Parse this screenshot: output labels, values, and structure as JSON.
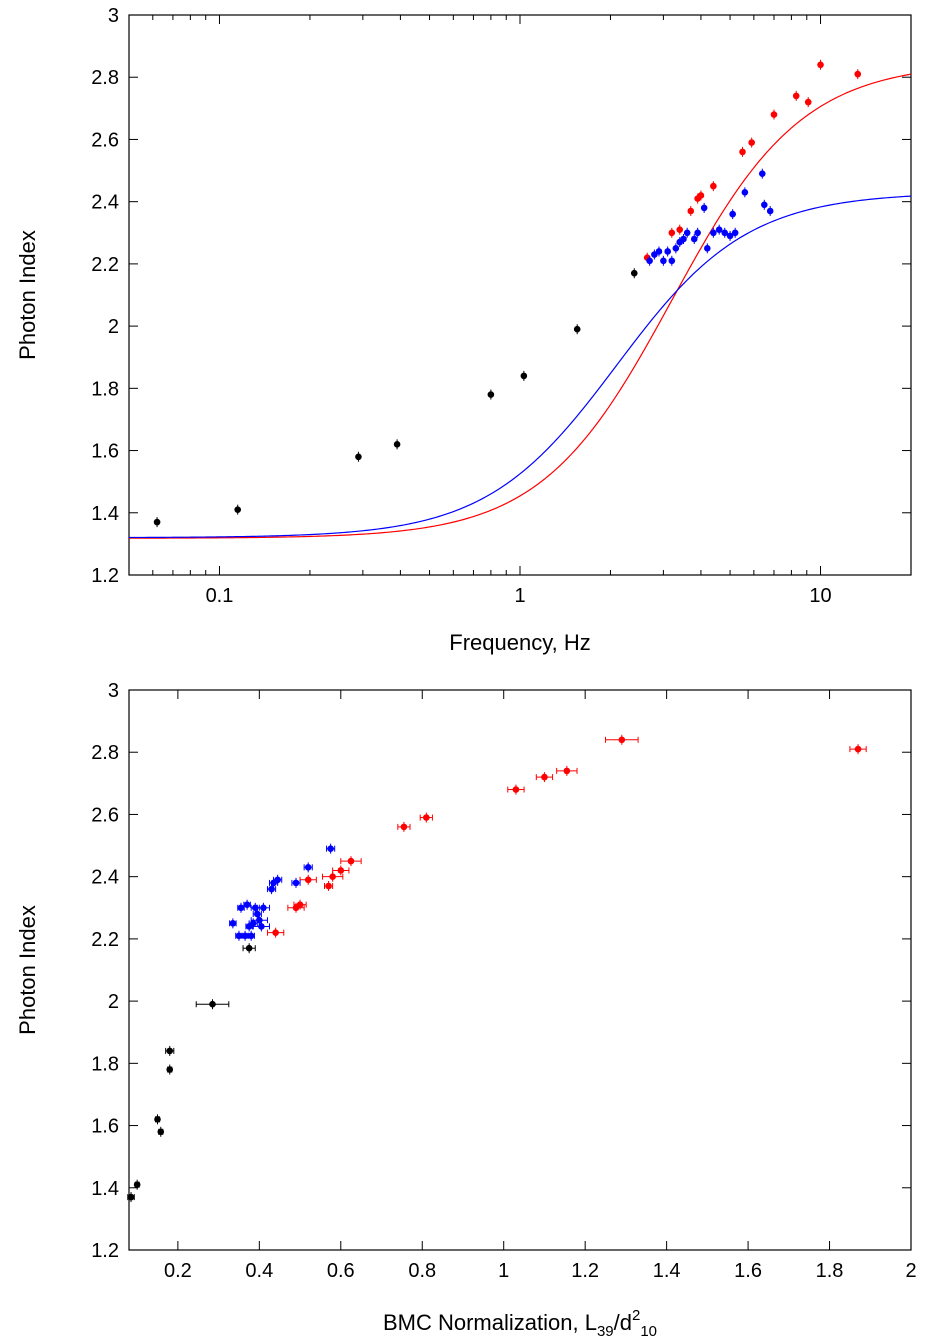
{
  "colors": {
    "black_series": "#000000",
    "red_series": "#ff0000",
    "blue_series": "#0000ff"
  },
  "chart_data": [
    {
      "type": "scatter",
      "xlabel": "Frequency, Hz",
      "ylabel": "Photon Index",
      "xscale": "log",
      "xlim": [
        0.05,
        20
      ],
      "ylim": [
        1.2,
        3
      ],
      "x_ticks": [
        0.1,
        1,
        10
      ],
      "x_tick_labels": [
        "0.1",
        "1",
        "10"
      ],
      "y_ticks": [
        1.2,
        1.4,
        1.6,
        1.8,
        2,
        2.2,
        2.4,
        2.6,
        2.8,
        3
      ],
      "y_tick_labels": [
        "1.2",
        "1.4",
        "1.6",
        "1.8",
        "2",
        "2.2",
        "2.4",
        "2.6",
        "2.8",
        "3"
      ],
      "grid": false,
      "series": [
        {
          "color": "#000000",
          "points": [
            [
              0.062,
              1.37
            ],
            [
              0.115,
              1.41
            ],
            [
              0.29,
              1.58
            ],
            [
              0.39,
              1.62
            ],
            [
              0.8,
              1.78
            ],
            [
              1.03,
              1.84
            ],
            [
              1.55,
              1.99
            ],
            [
              2.4,
              2.17
            ]
          ]
        },
        {
          "color": "#ff0000",
          "points": [
            [
              2.65,
              2.22
            ],
            [
              3.2,
              2.3
            ],
            [
              3.4,
              2.31
            ],
            [
              3.7,
              2.37
            ],
            [
              3.9,
              2.41
            ],
            [
              4.0,
              2.42
            ],
            [
              4.4,
              2.45
            ],
            [
              5.5,
              2.56
            ],
            [
              5.9,
              2.59
            ],
            [
              7.0,
              2.68
            ],
            [
              8.3,
              2.74
            ],
            [
              9.1,
              2.72
            ],
            [
              10.0,
              2.84
            ],
            [
              13.3,
              2.81
            ]
          ]
        },
        {
          "color": "#0000ff",
          "points": [
            [
              2.7,
              2.21
            ],
            [
              2.8,
              2.23
            ],
            [
              2.9,
              2.24
            ],
            [
              3.0,
              2.21
            ],
            [
              3.1,
              2.24
            ],
            [
              3.2,
              2.21
            ],
            [
              3.3,
              2.25
            ],
            [
              3.4,
              2.27
            ],
            [
              3.5,
              2.28
            ],
            [
              3.6,
              2.3
            ],
            [
              3.8,
              2.28
            ],
            [
              3.9,
              2.3
            ],
            [
              4.1,
              2.38
            ],
            [
              4.2,
              2.25
            ],
            [
              4.4,
              2.3
            ],
            [
              4.6,
              2.31
            ],
            [
              4.8,
              2.3
            ],
            [
              5.0,
              2.29
            ],
            [
              5.1,
              2.36
            ],
            [
              5.2,
              2.3
            ],
            [
              5.6,
              2.43
            ],
            [
              6.4,
              2.49
            ],
            [
              6.5,
              2.39
            ],
            [
              6.8,
              2.37
            ]
          ]
        }
      ],
      "fits": [
        {
          "color": "#ff0000",
          "a": 1.318,
          "b": 1.53,
          "x0": 3.2,
          "n": 2.0
        },
        {
          "color": "#0000ff",
          "a": 1.32,
          "b": 1.11,
          "x0": 2.1,
          "n": 2.0
        }
      ]
    },
    {
      "type": "scatter",
      "xlabel_main": "BMC Normalization, L",
      "xlabel_sub1": "39",
      "xlabel_mid": "/d",
      "xlabel_sup": "2",
      "xlabel_sub2": "10",
      "ylabel": "Photon Index",
      "xlim": [
        0.08,
        2
      ],
      "ylim": [
        1.2,
        3
      ],
      "x_ticks": [
        0.2,
        0.4,
        0.6,
        0.8,
        1,
        1.2,
        1.4,
        1.6,
        1.8,
        2
      ],
      "x_tick_labels": [
        "0.2",
        "0.4",
        "0.6",
        "0.8",
        "1",
        "1.2",
        "1.4",
        "1.6",
        "1.8",
        "2"
      ],
      "y_ticks": [
        1.2,
        1.4,
        1.6,
        1.8,
        2,
        2.2,
        2.4,
        2.6,
        2.8,
        3
      ],
      "y_tick_labels": [
        "1.2",
        "1.4",
        "1.6",
        "1.8",
        "2",
        "2.2",
        "2.4",
        "2.6",
        "2.8",
        "3"
      ],
      "grid": false,
      "series": [
        {
          "color": "#000000",
          "points": [
            [
              0.085,
              1.37,
              0.008
            ],
            [
              0.1,
              1.41,
              0.005
            ],
            [
              0.15,
              1.62,
              0.005
            ],
            [
              0.158,
              1.58,
              0.005
            ],
            [
              0.18,
              1.84,
              0.01
            ],
            [
              0.18,
              1.78,
              0.005
            ],
            [
              0.285,
              1.99,
              0.04
            ],
            [
              0.375,
              2.17,
              0.015
            ]
          ]
        },
        {
          "color": "#ff0000",
          "points": [
            [
              0.44,
              2.22,
              0.02
            ],
            [
              0.49,
              2.3,
              0.02
            ],
            [
              0.5,
              2.31,
              0.015
            ],
            [
              0.52,
              2.39,
              0.02
            ],
            [
              0.57,
              2.37,
              0.01
            ],
            [
              0.58,
              2.4,
              0.025
            ],
            [
              0.6,
              2.42,
              0.02
            ],
            [
              0.625,
              2.45,
              0.025
            ],
            [
              0.755,
              2.56,
              0.015
            ],
            [
              0.81,
              2.59,
              0.015
            ],
            [
              1.03,
              2.68,
              0.02
            ],
            [
              1.1,
              2.72,
              0.02
            ],
            [
              1.155,
              2.74,
              0.025
            ],
            [
              1.29,
              2.84,
              0.04
            ],
            [
              1.87,
              2.81,
              0.02
            ]
          ]
        },
        {
          "color": "#0000ff",
          "points": [
            [
              0.335,
              2.25,
              0.008
            ],
            [
              0.35,
              2.21,
              0.008
            ],
            [
              0.355,
              2.3,
              0.008
            ],
            [
              0.365,
              2.21,
              0.008
            ],
            [
              0.37,
              2.31,
              0.008
            ],
            [
              0.375,
              2.24,
              0.008
            ],
            [
              0.38,
              2.21,
              0.008
            ],
            [
              0.385,
              2.25,
              0.01
            ],
            [
              0.39,
              2.3,
              0.01
            ],
            [
              0.395,
              2.28,
              0.01
            ],
            [
              0.4,
              2.26,
              0.02
            ],
            [
              0.405,
              2.24,
              0.02
            ],
            [
              0.41,
              2.3,
              0.015
            ],
            [
              0.43,
              2.36,
              0.01
            ],
            [
              0.435,
              2.38,
              0.01
            ],
            [
              0.445,
              2.39,
              0.01
            ],
            [
              0.49,
              2.38,
              0.01
            ],
            [
              0.52,
              2.43,
              0.01
            ],
            [
              0.575,
              2.49,
              0.01
            ]
          ]
        }
      ]
    }
  ]
}
